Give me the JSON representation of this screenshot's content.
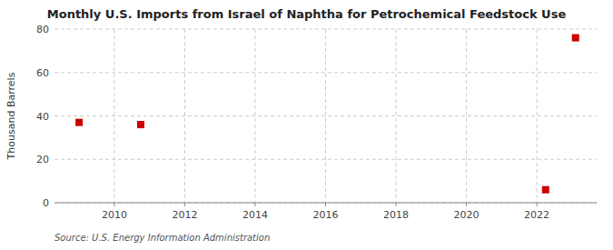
{
  "chart_data": {
    "type": "scatter",
    "title": "Monthly U.S. Imports from Israel of Naphtha for Petrochemical Feedstock Use",
    "y_label": "Thousand Barrels",
    "source": "Source: U.S. Energy Information Administration",
    "x": [
      2009.0,
      2010.75,
      2022.25,
      2023.1
    ],
    "values": [
      37,
      36,
      6,
      76
    ],
    "color": "#cc0000",
    "marker": "square",
    "xlim": [
      2008.3,
      2023.7
    ],
    "ylim": [
      0,
      80
    ],
    "xticks": [
      2010,
      2012,
      2014,
      2016,
      2018,
      2020,
      2022
    ],
    "yticks": [
      0,
      20,
      40,
      60,
      80
    ],
    "grid": true
  }
}
